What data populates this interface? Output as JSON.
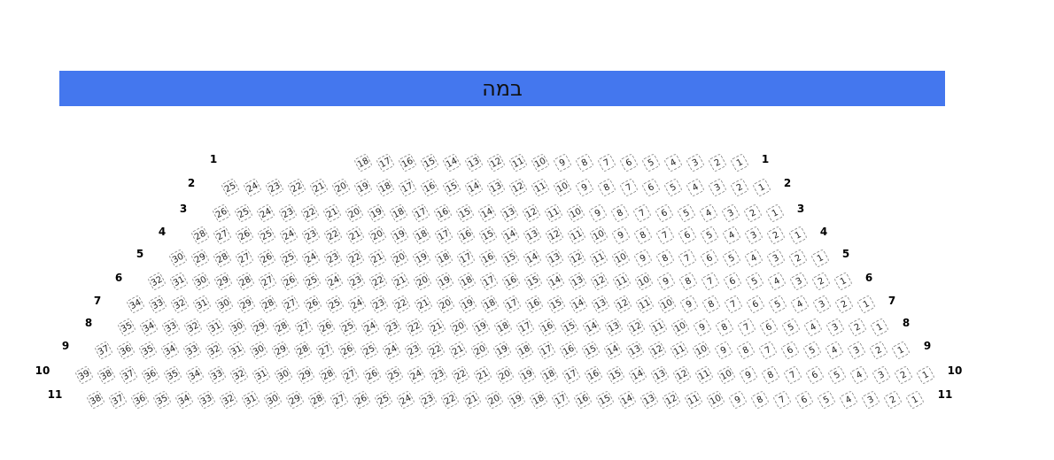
{
  "stage": {
    "label": "במה",
    "color": "#4477ee"
  },
  "rows": [
    {
      "label": "1",
      "seats": [
        18,
        17,
        16,
        15,
        14,
        13,
        12,
        11,
        10,
        9,
        8,
        7,
        6,
        5,
        4,
        3,
        2,
        1
      ]
    },
    {
      "label": "2",
      "seats": [
        25,
        24,
        23,
        22,
        21,
        20,
        19,
        18,
        17,
        16,
        15,
        14,
        13,
        12,
        11,
        10,
        9,
        8,
        7,
        6,
        5,
        4,
        3,
        2,
        1
      ]
    },
    {
      "label": "3",
      "seats": [
        26,
        25,
        24,
        23,
        22,
        21,
        20,
        19,
        18,
        17,
        16,
        15,
        14,
        13,
        12,
        11,
        10,
        9,
        8,
        7,
        6,
        5,
        4,
        3,
        2,
        1
      ]
    },
    {
      "label": "4",
      "seats": [
        28,
        27,
        26,
        25,
        24,
        23,
        22,
        21,
        20,
        19,
        18,
        17,
        16,
        15,
        14,
        13,
        12,
        11,
        10,
        9,
        8,
        7,
        6,
        5,
        4,
        3,
        2,
        1
      ]
    },
    {
      "label": "5",
      "seats": [
        30,
        29,
        28,
        27,
        26,
        25,
        24,
        23,
        22,
        21,
        20,
        19,
        18,
        17,
        16,
        15,
        14,
        13,
        12,
        11,
        10,
        9,
        8,
        7,
        6,
        5,
        4,
        3,
        2,
        1
      ]
    },
    {
      "label": "6",
      "seats": [
        32,
        31,
        30,
        29,
        28,
        27,
        26,
        25,
        24,
        23,
        22,
        21,
        20,
        19,
        18,
        17,
        16,
        15,
        14,
        13,
        12,
        11,
        10,
        9,
        8,
        7,
        6,
        5,
        4,
        3,
        2,
        1
      ]
    },
    {
      "label": "7",
      "seats": [
        34,
        33,
        32,
        31,
        30,
        29,
        28,
        27,
        26,
        25,
        24,
        23,
        22,
        21,
        20,
        19,
        18,
        17,
        16,
        15,
        14,
        13,
        12,
        11,
        10,
        9,
        8,
        7,
        6,
        5,
        4,
        3,
        2,
        1
      ]
    },
    {
      "label": "8",
      "seats": [
        35,
        34,
        33,
        32,
        31,
        30,
        29,
        28,
        27,
        26,
        25,
        24,
        23,
        22,
        21,
        20,
        19,
        18,
        17,
        16,
        15,
        14,
        13,
        12,
        11,
        10,
        9,
        8,
        7,
        6,
        5,
        4,
        3,
        2,
        1
      ]
    },
    {
      "label": "9",
      "seats": [
        37,
        36,
        35,
        34,
        33,
        32,
        31,
        30,
        29,
        28,
        27,
        26,
        25,
        24,
        23,
        22,
        21,
        20,
        19,
        18,
        17,
        16,
        15,
        14,
        13,
        12,
        11,
        10,
        9,
        8,
        7,
        6,
        5,
        4,
        3,
        2,
        1
      ]
    },
    {
      "label": "10",
      "seats": [
        39,
        38,
        37,
        36,
        35,
        34,
        33,
        32,
        31,
        30,
        29,
        28,
        27,
        26,
        25,
        24,
        23,
        22,
        21,
        20,
        19,
        18,
        17,
        16,
        15,
        14,
        13,
        12,
        11,
        10,
        9,
        8,
        7,
        6,
        5,
        4,
        3,
        2,
        1
      ]
    },
    {
      "label": "11",
      "seats": [
        38,
        37,
        36,
        35,
        34,
        33,
        32,
        31,
        30,
        29,
        28,
        27,
        26,
        25,
        24,
        23,
        22,
        21,
        20,
        19,
        18,
        17,
        16,
        15,
        14,
        13,
        12,
        11,
        10,
        9,
        8,
        7,
        6,
        5,
        4,
        3,
        2,
        1
      ]
    }
  ]
}
